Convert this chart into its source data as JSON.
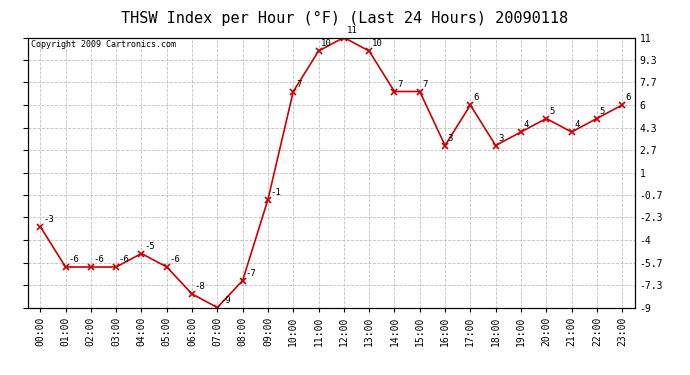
{
  "title": "THSW Index per Hour (°F) (Last 24 Hours) 20090118",
  "copyright": "Copyright 2009 Cartronics.com",
  "hours": [
    "00:00",
    "01:00",
    "02:00",
    "03:00",
    "04:00",
    "05:00",
    "06:00",
    "07:00",
    "08:00",
    "09:00",
    "10:00",
    "11:00",
    "12:00",
    "13:00",
    "14:00",
    "15:00",
    "16:00",
    "17:00",
    "18:00",
    "19:00",
    "20:00",
    "21:00",
    "22:00",
    "23:00"
  ],
  "values": [
    -3,
    -6,
    -6,
    -6,
    -5,
    -6,
    -8,
    -9,
    -7,
    -1,
    7,
    10,
    11,
    10,
    7,
    7,
    3,
    6,
    3,
    4,
    5,
    4,
    5,
    6
  ],
  "line_color": "#cc0000",
  "marker_color": "#cc0000",
  "bg_color": "#ffffff",
  "plot_bg_color": "#ffffff",
  "grid_color": "#c0c0c0",
  "ylim_min": -9.0,
  "ylim_max": 11.0,
  "yticks": [
    11.0,
    9.3,
    7.7,
    6.0,
    4.3,
    2.7,
    1.0,
    -0.7,
    -2.3,
    -4.0,
    -5.7,
    -7.3,
    -9.0
  ],
  "title_fontsize": 11,
  "label_fontsize": 7,
  "copyright_fontsize": 6,
  "value_fontsize": 6.5
}
